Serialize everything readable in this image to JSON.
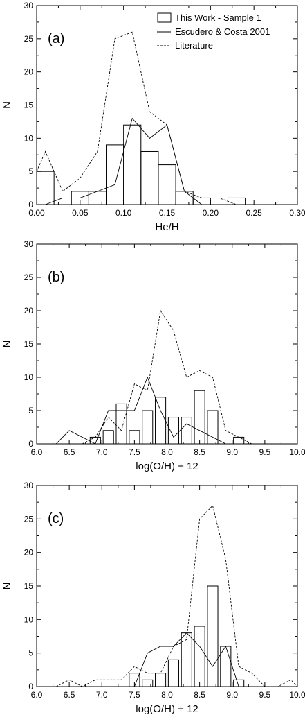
{
  "legend": {
    "bars_label": "This Work - Sample 1",
    "solid_label": "Escudero & Costa 2001",
    "dashed_label": "Literature"
  },
  "chart_data": [
    {
      "type": "bar",
      "panel_label": "(a)",
      "xlabel": "He/H",
      "ylabel": "N",
      "xlim": [
        0.0,
        0.3
      ],
      "ylim": [
        0,
        30
      ],
      "xticks": [
        "0.00",
        "0.05",
        "0.10",
        "0.15",
        "0.20",
        "0.25",
        "0.30"
      ],
      "xtick_values": [
        0.0,
        0.05,
        0.1,
        0.15,
        0.2,
        0.25,
        0.3
      ],
      "yticks": [
        0,
        5,
        10,
        15,
        20,
        25,
        30
      ],
      "bar_width": 0.02,
      "bars": {
        "name": "This Work - Sample 1",
        "x": [
          0.01,
          0.05,
          0.07,
          0.09,
          0.11,
          0.13,
          0.15,
          0.17,
          0.19,
          0.23
        ],
        "values": [
          5,
          2,
          2,
          9,
          12,
          8,
          6,
          2,
          1,
          1
        ]
      },
      "series": [
        {
          "name": "Escudero & Costa 2001",
          "style": "solid",
          "x": [
            0.01,
            0.03,
            0.05,
            0.07,
            0.09,
            0.11,
            0.13,
            0.15,
            0.17,
            0.19
          ],
          "values": [
            0,
            1,
            1,
            2,
            3,
            13,
            10,
            12,
            2,
            0
          ]
        },
        {
          "name": "Literature",
          "style": "dashed",
          "x": [
            0.0,
            0.01,
            0.03,
            0.05,
            0.07,
            0.09,
            0.11,
            0.13,
            0.15,
            0.17,
            0.19,
            0.21,
            0.23
          ],
          "values": [
            5,
            8,
            2,
            4,
            8,
            25,
            26,
            14,
            12,
            2,
            1,
            1,
            0
          ]
        }
      ]
    },
    {
      "type": "bar",
      "panel_label": "(b)",
      "xlabel": "log(O/H) + 12",
      "ylabel": "N",
      "xlim": [
        6.0,
        10.0
      ],
      "ylim": [
        0,
        30
      ],
      "xticks": [
        "6.0",
        "6.5",
        "7.0",
        "7.5",
        "8.0",
        "8.5",
        "9.0",
        "9.5",
        "10.0"
      ],
      "xtick_values": [
        6.0,
        6.5,
        7.0,
        7.5,
        8.0,
        8.5,
        9.0,
        9.5,
        10.0
      ],
      "yticks": [
        0,
        5,
        10,
        15,
        20,
        25,
        30
      ],
      "bar_width": 0.16,
      "bars": {
        "name": "This Work - Sample 1",
        "x": [
          6.9,
          7.1,
          7.3,
          7.5,
          7.7,
          7.9,
          8.1,
          8.3,
          8.5,
          8.7,
          9.1
        ],
        "values": [
          1,
          2,
          6,
          2,
          5,
          7,
          4,
          4,
          8,
          5,
          1
        ]
      },
      "series": [
        {
          "name": "Escudero & Costa 2001",
          "style": "solid",
          "x": [
            6.3,
            6.5,
            6.7,
            6.9,
            7.1,
            7.3,
            7.5,
            7.7,
            7.9,
            8.1,
            8.3,
            8.5,
            8.7,
            8.9
          ],
          "values": [
            0,
            2,
            1,
            0,
            5,
            5,
            5,
            10,
            5,
            1,
            3,
            2,
            1,
            0
          ]
        },
        {
          "name": "Literature",
          "style": "dashed",
          "x": [
            6.7,
            6.9,
            7.1,
            7.3,
            7.5,
            7.7,
            7.9,
            8.1,
            8.3,
            8.5,
            8.7,
            8.9,
            9.1,
            9.3
          ],
          "values": [
            0,
            1,
            4,
            2,
            9,
            8,
            20,
            17,
            10,
            11,
            10,
            2,
            1,
            0
          ]
        }
      ]
    },
    {
      "type": "bar",
      "panel_label": "(c)",
      "xlabel": "log(O/H) + 12",
      "ylabel": "N",
      "xlim": [
        6.0,
        10.0
      ],
      "ylim": [
        0,
        30
      ],
      "xticks": [
        "6.0",
        "6.5",
        "7.0",
        "7.5",
        "8.0",
        "8.5",
        "9.0",
        "9.5",
        "10.0"
      ],
      "xtick_values": [
        6.0,
        6.5,
        7.0,
        7.5,
        8.0,
        8.5,
        9.0,
        9.5,
        10.0
      ],
      "yticks": [
        0,
        5,
        10,
        15,
        20,
        25,
        30
      ],
      "bar_width": 0.16,
      "bars": {
        "name": "This Work - Sample 1",
        "x": [
          7.5,
          7.7,
          7.9,
          8.1,
          8.3,
          8.5,
          8.7,
          8.9,
          9.1
        ],
        "values": [
          2,
          1,
          2,
          4,
          8,
          9,
          15,
          6,
          1
        ]
      },
      "series": [
        {
          "name": "Escudero & Costa 2001",
          "style": "solid",
          "x": [
            7.5,
            7.7,
            7.9,
            8.1,
            8.3,
            8.5,
            8.7,
            8.9,
            9.1
          ],
          "values": [
            0,
            5,
            6,
            6,
            8,
            6,
            3,
            6,
            0
          ]
        },
        {
          "name": "Literature",
          "style": "dashed",
          "x": [
            6.3,
            6.5,
            6.7,
            6.9,
            7.1,
            7.3,
            7.5,
            7.7,
            7.9,
            8.1,
            8.3,
            8.5,
            8.7,
            8.9,
            9.1,
            9.3,
            9.5,
            9.7,
            9.9,
            10.0
          ],
          "values": [
            0,
            1,
            0,
            1,
            1,
            1,
            3,
            2,
            2,
            6,
            7,
            25,
            27,
            19,
            3,
            2,
            0,
            0,
            1,
            0
          ]
        }
      ]
    }
  ]
}
